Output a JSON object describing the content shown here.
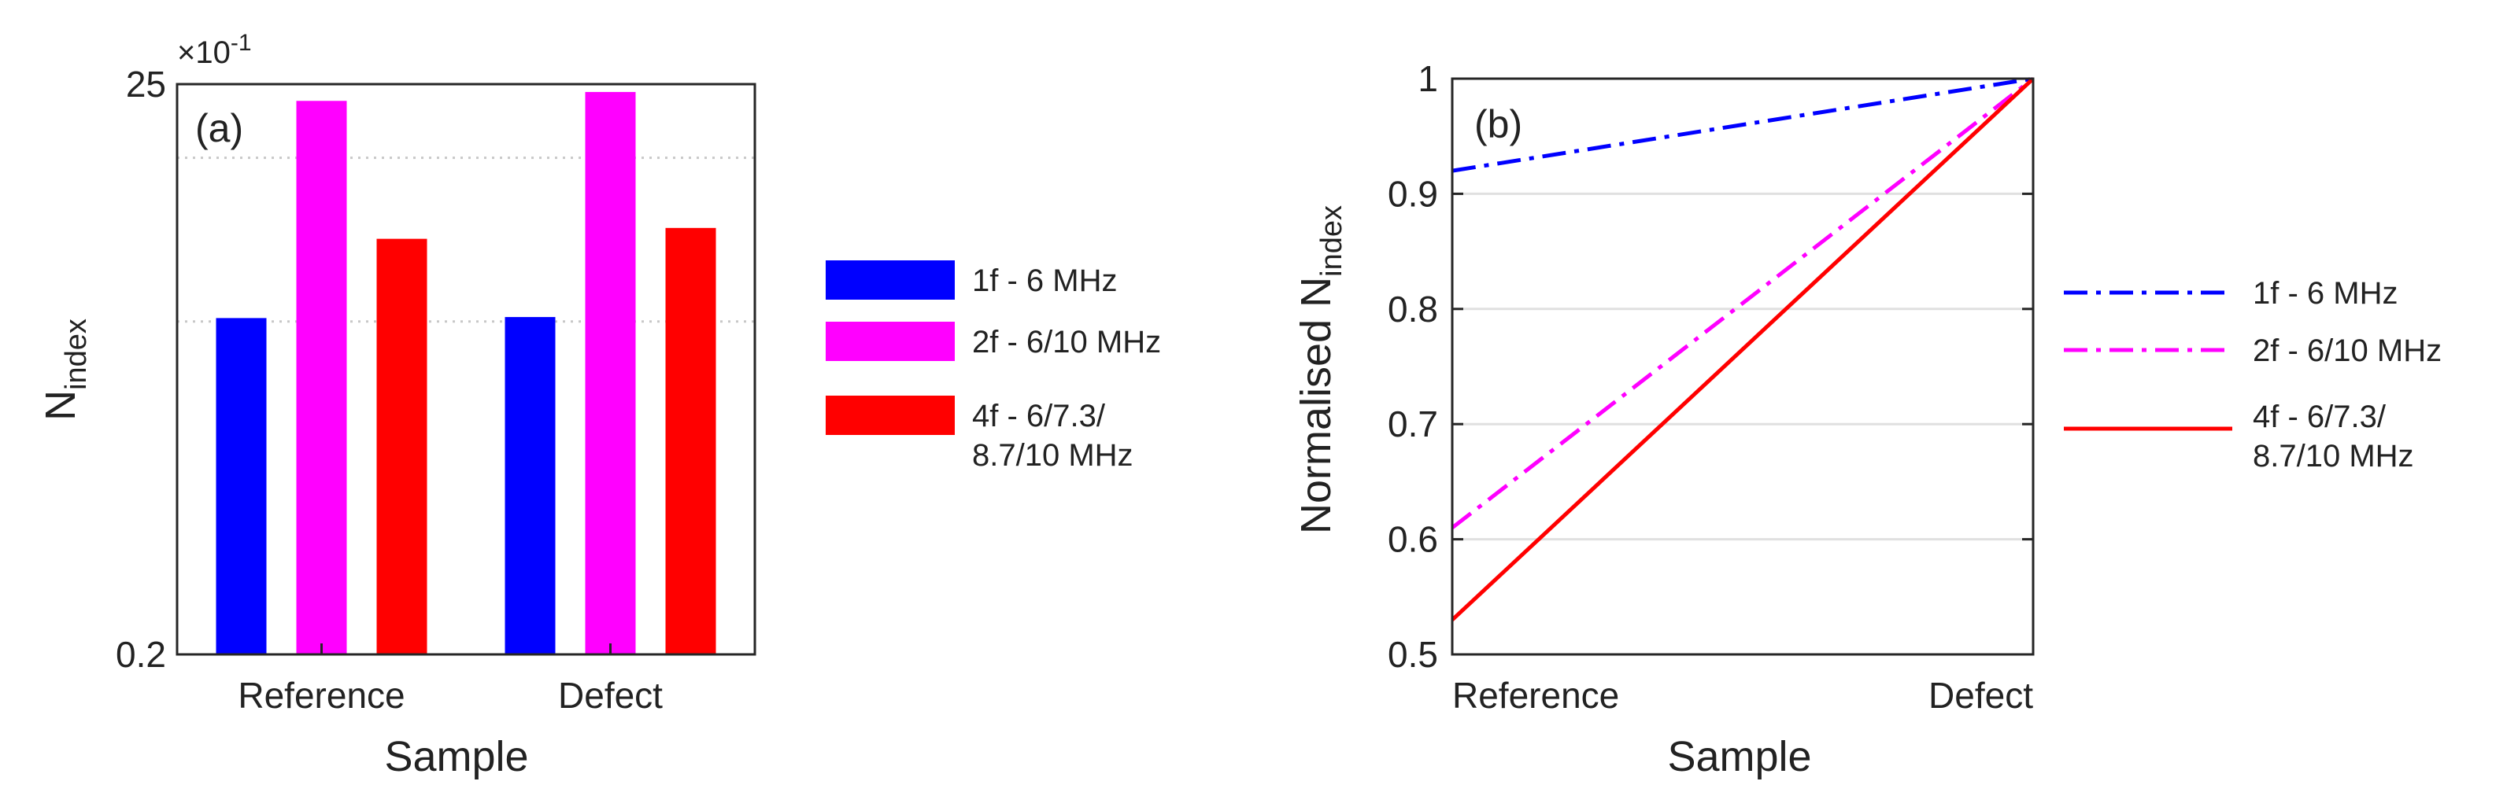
{
  "colors": {
    "blue": "#0000ff",
    "magenta": "#ff00ff",
    "red": "#ff0000",
    "grid": "#c8c8c8",
    "axis": "#262626"
  },
  "chart_data": [
    {
      "type": "bar",
      "panel_label": "(a)",
      "xlabel": "Sample",
      "ylabel_main": "N",
      "ylabel_sub": "index",
      "yscale": "log",
      "y_multiplier": "×10",
      "y_multiplier_exp": "-1",
      "ylim": [
        0.2,
        25
      ],
      "yticks": [
        {
          "value": 0.2,
          "label": "0.2"
        },
        {
          "value": 25,
          "label": "25"
        }
      ],
      "grid_y": [
        3.35,
        13.4
      ],
      "categories": [
        "Reference",
        "Defect"
      ],
      "series": [
        {
          "name": "1f - 6 MHz",
          "color": "#0000ff",
          "values": [
            3.45,
            3.48
          ]
        },
        {
          "name": "2f - 6/10 MHz",
          "color": "#ff00ff",
          "values": [
            21.7,
            23.4
          ]
        },
        {
          "name": "4f - 6/7.3/8.7/10 MHz",
          "color": "#ff0000",
          "values": [
            6.75,
            7.4
          ]
        }
      ],
      "legend": {
        "position": "outside-right",
        "entries": [
          {
            "lines": [
              "1f - 6 MHz"
            ],
            "color": "#0000ff"
          },
          {
            "lines": [
              "2f - 6/10 MHz"
            ],
            "color": "#ff00ff"
          },
          {
            "lines": [
              "4f - 6/7.3/",
              "8.7/10 MHz"
            ],
            "color": "#ff0000"
          }
        ]
      }
    },
    {
      "type": "line",
      "panel_label": "(b)",
      "xlabel": "Sample",
      "ylabel_main": "Normalised N",
      "ylabel_sub": "index",
      "categories": [
        "Reference",
        "Defect"
      ],
      "ylim": [
        0.5,
        1.0
      ],
      "yticks": [
        {
          "value": 0.5,
          "label": "0.5"
        },
        {
          "value": 0.6,
          "label": "0.6"
        },
        {
          "value": 0.7,
          "label": "0.7"
        },
        {
          "value": 0.8,
          "label": "0.8"
        },
        {
          "value": 0.9,
          "label": "0.9"
        },
        {
          "value": 1.0,
          "label": "1"
        }
      ],
      "grid": true,
      "series": [
        {
          "name": "1f - 6 MHz",
          "color": "#0000ff",
          "style": "dashdot",
          "values": [
            0.92,
            1.0
          ]
        },
        {
          "name": "2f - 6/10 MHz",
          "color": "#ff00ff",
          "style": "dashdot",
          "values": [
            0.61,
            1.0
          ]
        },
        {
          "name": "4f - 6/7.3/8.7/10 MHz",
          "color": "#ff0000",
          "style": "solid",
          "values": [
            0.53,
            1.0
          ]
        }
      ],
      "legend": {
        "position": "outside-right",
        "entries": [
          {
            "lines": [
              "1f - 6 MHz"
            ],
            "color": "#0000ff",
            "style": "dashdot"
          },
          {
            "lines": [
              "2f - 6/10 MHz"
            ],
            "color": "#ff00ff",
            "style": "dashdot"
          },
          {
            "lines": [
              "4f - 6/7.3/",
              "8.7/10 MHz"
            ],
            "color": "#ff0000",
            "style": "solid"
          }
        ]
      }
    }
  ]
}
